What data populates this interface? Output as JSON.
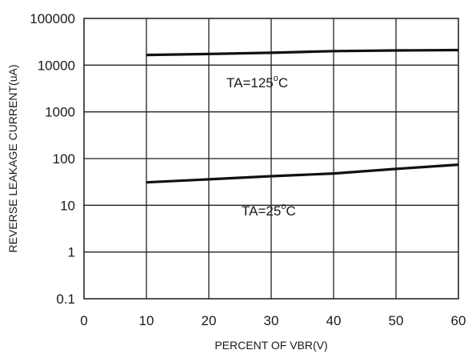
{
  "chart_data": {
    "type": "line",
    "xlabel": "PERCENT OF VBR(V)",
    "ylabel": "REVERSE LEAKAGE CURRENT(uA)",
    "xlim": [
      0,
      60
    ],
    "ylim": [
      0.1,
      100000
    ],
    "yscale": "log",
    "grid": true,
    "x_ticks": [
      "0",
      "10",
      "20",
      "30",
      "40",
      "50",
      "60"
    ],
    "y_ticks": [
      "0.1",
      "1",
      "10",
      "100",
      "1000",
      "10000",
      "100000"
    ],
    "series": [
      {
        "name": "TA=125°C",
        "label_main": "TA=125",
        "label_deg": "o",
        "label_unit": "C",
        "color": "#111111",
        "points": [
          [
            10,
            16500
          ],
          [
            20,
            17300
          ],
          [
            30,
            18400
          ],
          [
            40,
            20000
          ],
          [
            50,
            20600
          ],
          [
            60,
            21000
          ]
        ]
      },
      {
        "name": "TA=25°C",
        "label_main": "TA=25",
        "label_deg": "o",
        "label_unit": "C",
        "color": "#111111",
        "points": [
          [
            10,
            31
          ],
          [
            20,
            36
          ],
          [
            30,
            42
          ],
          [
            40,
            48
          ],
          [
            50,
            60
          ],
          [
            60,
            74
          ]
        ]
      }
    ]
  }
}
